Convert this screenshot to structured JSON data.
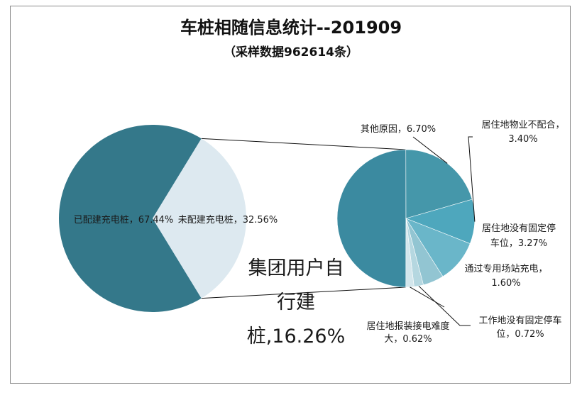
{
  "chart_data": {
    "type": "pie",
    "subtype": "pie-of-pie",
    "title": "车桩相随信息统计--201909",
    "subtitle": "（采样数据962614条）",
    "main_pie": [
      {
        "name": "已配建充电桩",
        "value": 67.44,
        "label": "已配建充电桩，67.44%",
        "color": "#34788a"
      },
      {
        "name": "未配建充电桩",
        "value": 32.56,
        "label": "未配建充电桩，32.56%",
        "color": "#dde9f0"
      }
    ],
    "breakdown_pie": [
      {
        "name": "集团用户自行建桩",
        "value": 16.26,
        "label_lines": [
          "集团用户自",
          "行建",
          "桩,16.26%"
        ],
        "color": "#3b8aa0"
      },
      {
        "name": "其他原因",
        "value": 6.7,
        "label_lines": [
          "其他原因，6.70%"
        ],
        "color": "#4597aa"
      },
      {
        "name": "居住地物业不配合",
        "value": 3.4,
        "label_lines": [
          "居住地物业不配合，",
          "3.40%"
        ],
        "color": "#4ea7bd"
      },
      {
        "name": "居住地没有固定停车位",
        "value": 3.27,
        "label_lines": [
          "居住地没有固定停",
          "车位，3.27%"
        ],
        "color": "#6ab6c9"
      },
      {
        "name": "通过专用场站充电",
        "value": 1.6,
        "label_lines": [
          "通过专用场站充电，",
          "1.60%"
        ],
        "color": "#92c5d2"
      },
      {
        "name": "工作地没有固定停车位",
        "value": 0.72,
        "label_lines": [
          "工作地没有固定停车",
          "位，0.72%"
        ],
        "color": "#b5d7e0"
      },
      {
        "name": "居住地报装接电难度大",
        "value": 0.62,
        "label_lines": [
          "居住地报装接电难度",
          "大，0.62%"
        ],
        "color": "#d3e6ec"
      }
    ]
  }
}
